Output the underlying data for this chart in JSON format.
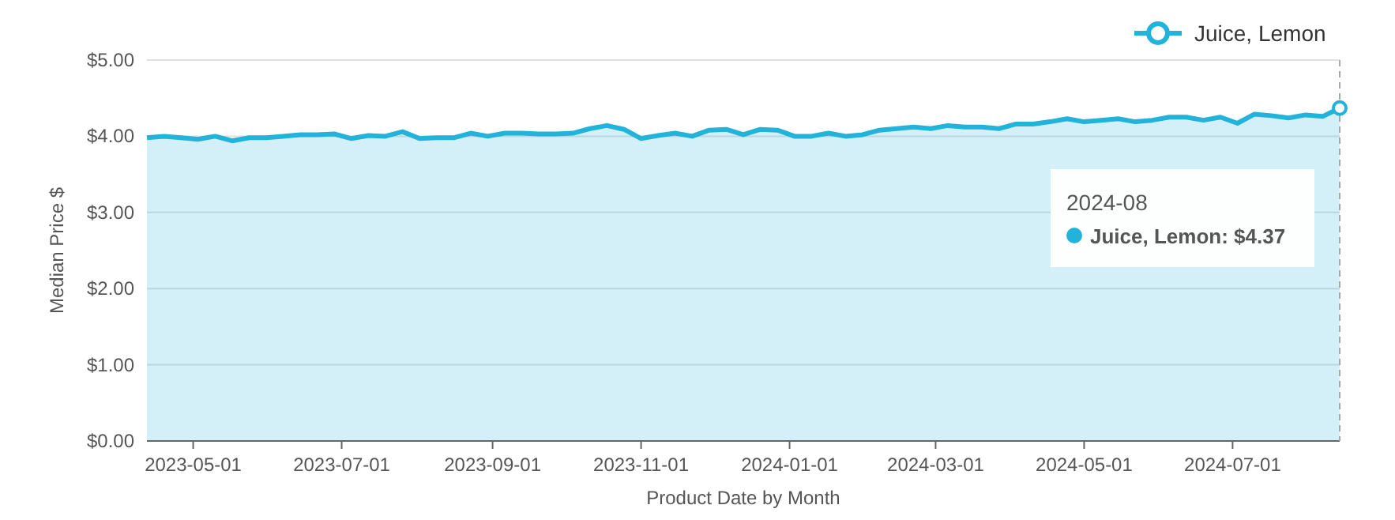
{
  "chart_data": {
    "type": "area",
    "xlabel": "Product Date by Month",
    "ylabel": "Median Price $",
    "x": [
      "2023-04-12",
      "2023-04-19",
      "2023-04-26",
      "2023-05-03",
      "2023-05-10",
      "2023-05-17",
      "2023-05-24",
      "2023-05-31",
      "2023-06-07",
      "2023-06-14",
      "2023-06-21",
      "2023-06-28",
      "2023-07-05",
      "2023-07-12",
      "2023-07-19",
      "2023-07-26",
      "2023-08-02",
      "2023-08-09",
      "2023-08-16",
      "2023-08-23",
      "2023-08-30",
      "2023-09-06",
      "2023-09-13",
      "2023-09-20",
      "2023-09-27",
      "2023-10-04",
      "2023-10-11",
      "2023-10-18",
      "2023-10-25",
      "2023-11-01",
      "2023-11-08",
      "2023-11-15",
      "2023-11-22",
      "2023-11-29",
      "2023-12-06",
      "2023-12-13",
      "2023-12-20",
      "2023-12-27",
      "2024-01-03",
      "2024-01-10",
      "2024-01-17",
      "2024-01-24",
      "2024-01-31",
      "2024-02-07",
      "2024-02-14",
      "2024-02-21",
      "2024-02-28",
      "2024-03-06",
      "2024-03-13",
      "2024-03-20",
      "2024-03-27",
      "2024-04-03",
      "2024-04-10",
      "2024-04-17",
      "2024-04-24",
      "2024-05-01",
      "2024-05-08",
      "2024-05-15",
      "2024-05-22",
      "2024-05-29",
      "2024-06-05",
      "2024-06-12",
      "2024-06-19",
      "2024-06-26",
      "2024-07-03",
      "2024-07-10",
      "2024-07-17",
      "2024-07-24",
      "2024-07-31",
      "2024-08-07",
      "2024-08-14"
    ],
    "series": [
      {
        "name": "Juice, Lemon",
        "color": "#22b3da",
        "values": [
          3.98,
          4.0,
          3.98,
          3.96,
          4.0,
          3.94,
          3.98,
          3.98,
          4.0,
          4.02,
          4.02,
          4.03,
          3.97,
          4.01,
          4.0,
          4.06,
          3.97,
          3.98,
          3.98,
          4.04,
          4.0,
          4.04,
          4.04,
          4.03,
          4.03,
          4.04,
          4.1,
          4.14,
          4.09,
          3.97,
          4.01,
          4.04,
          4.0,
          4.08,
          4.09,
          4.02,
          4.09,
          4.08,
          4.0,
          4.0,
          4.04,
          4.0,
          4.02,
          4.08,
          4.1,
          4.12,
          4.1,
          4.14,
          4.12,
          4.12,
          4.1,
          4.16,
          4.16,
          4.19,
          4.23,
          4.19,
          4.21,
          4.23,
          4.19,
          4.21,
          4.25,
          4.25,
          4.21,
          4.25,
          4.17,
          4.29,
          4.27,
          4.24,
          4.28,
          4.26,
          4.37
        ]
      }
    ],
    "xlim": [
      "2023-04-12",
      "2024-08-14"
    ],
    "xticks": [
      "2023-05-01",
      "2023-07-01",
      "2023-09-01",
      "2023-11-01",
      "2024-01-01",
      "2024-03-01",
      "2024-05-01",
      "2024-07-01"
    ],
    "ylim": [
      0,
      5
    ],
    "yticks": [
      {
        "value": 0,
        "label": "$0.00"
      },
      {
        "value": 1,
        "label": "$1.00"
      },
      {
        "value": 2,
        "label": "$2.00"
      },
      {
        "value": 3,
        "label": "$3.00"
      },
      {
        "value": 4,
        "label": "$4.00"
      },
      {
        "value": 5,
        "label": "$5.00"
      }
    ],
    "grid": "y",
    "legend": "top right",
    "marker": "none",
    "ref_lines": [
      {
        "axis": "x",
        "value": "2024-08-14",
        "line_style": "dashed",
        "color": "#aaaaaa"
      }
    ],
    "annotations": [
      "2024-08",
      "Juice, Lemon: $4.37"
    ]
  }
}
